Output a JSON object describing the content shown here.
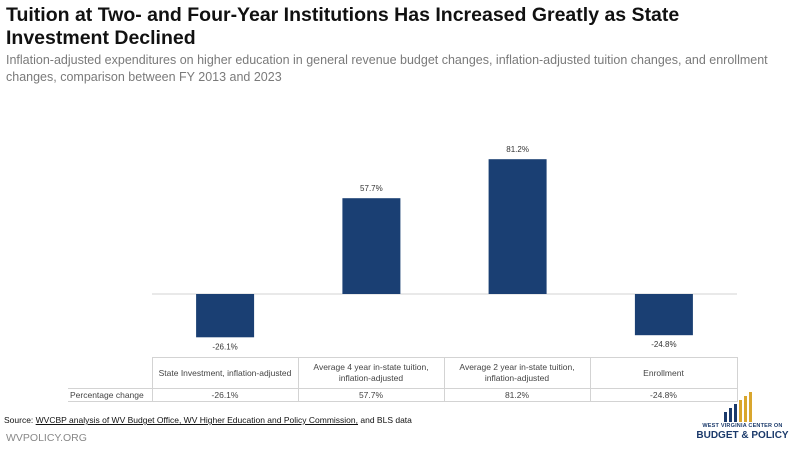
{
  "title": "Tuition at Two- and Four-Year Institutions Has Increased Greatly as State Investment Declined",
  "subtitle": "Inflation-adjusted expenditures on higher education in general revenue budget changes, inflation-adjusted tuition changes, and enrollment changes, comparison between FY 2013 and 2023",
  "chart_data": {
    "type": "bar",
    "categories": [
      "State Investment, inflation-adjusted",
      "Average 4 year in-state tuition, inflation-adjusted",
      "Average 2 year in-state tuition, inflation-adjusted",
      "Enrollment"
    ],
    "series": [
      {
        "name": "Percentage change",
        "values": [
          -26.1,
          57.7,
          81.2,
          -24.8
        ]
      }
    ],
    "data_labels": [
      "-26.1%",
      "57.7%",
      "81.2%",
      "-24.8%"
    ],
    "ylim": [
      -30,
      90
    ],
    "bar_color": "#1a3f73",
    "grid": false,
    "legend": "none",
    "data_table": true
  },
  "table": {
    "row_header": "Percentage change",
    "headers": [
      "State Investment, inflation-adjusted",
      "Average 4 year in-state tuition, inflation-adjusted",
      "Average 2 year in-state tuition, inflation-adjusted",
      "Enrollment"
    ],
    "values": [
      "-26.1%",
      "57.7%",
      "81.2%",
      "-24.8%"
    ]
  },
  "source": {
    "prefix": "Source: ",
    "text_a": "WVCBP analysis of WV Budget Office, WV Higher Education and Policy Commission,",
    "text_b": " and BLS data"
  },
  "footer": {
    "url": "WVPOLICY.ORG"
  },
  "logo": {
    "line1": "WEST VIRGINIA CENTER ON",
    "line2": "BUDGET & POLICY",
    "colors": [
      "#1b3a6b",
      "#d9a62e"
    ]
  }
}
